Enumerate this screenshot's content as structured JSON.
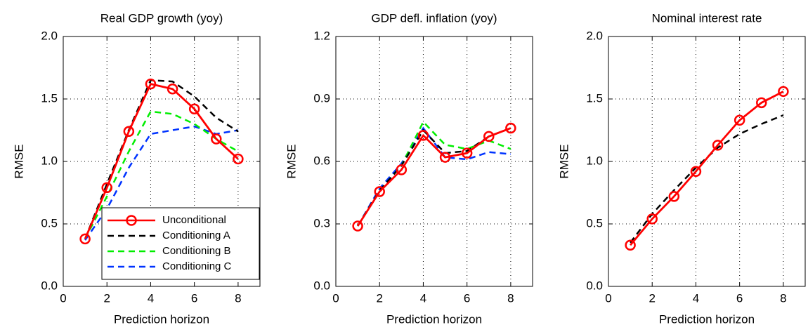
{
  "chart_data": [
    {
      "type": "line",
      "title": "Real GDP growth (yoy)",
      "x_label": "Prediction horizon",
      "y_label": "RMSE",
      "x": [
        1,
        2,
        3,
        4,
        5,
        6,
        7,
        8
      ],
      "xlim": [
        0,
        9
      ],
      "xticks": [
        0,
        2,
        4,
        6,
        8
      ],
      "ylim": [
        0,
        2
      ],
      "yticks": [
        {
          "value": 0,
          "label": "0.0"
        },
        {
          "value": 0.5,
          "label": "0.5"
        },
        {
          "value": 1,
          "label": "1.0"
        },
        {
          "value": 1.5,
          "label": "1.5"
        },
        {
          "value": 2,
          "label": "2.0"
        }
      ],
      "grid": true,
      "legend": "lower right",
      "series": [
        {
          "name": "Unconditional",
          "color": "#ff0000",
          "dash": "solid",
          "marker": "circle",
          "values": [
            0.38,
            0.79,
            1.24,
            1.62,
            1.58,
            1.42,
            1.18,
            1.02
          ]
        },
        {
          "name": "Conditioning A",
          "color": "#000000",
          "dash": "dashed",
          "values": [
            0.38,
            0.82,
            1.25,
            1.65,
            1.64,
            1.52,
            1.35,
            1.24
          ]
        },
        {
          "name": "Conditioning B",
          "color": "#00ee00",
          "dash": "dashed",
          "values": [
            0.38,
            0.72,
            1.08,
            1.4,
            1.38,
            1.3,
            1.18,
            1.08
          ]
        },
        {
          "name": "Conditioning C",
          "color": "#0033ff",
          "dash": "dashed",
          "values": [
            0.37,
            0.62,
            0.95,
            1.22,
            1.25,
            1.28,
            1.22,
            1.25
          ]
        }
      ]
    },
    {
      "type": "line",
      "title": "GDP defl. inflation (yoy)",
      "x_label": "Prediction horizon",
      "y_label": "RMSE",
      "x": [
        1,
        2,
        3,
        4,
        5,
        6,
        7,
        8
      ],
      "xlim": [
        0,
        9
      ],
      "xticks": [
        0,
        2,
        4,
        6,
        8
      ],
      "ylim": [
        0,
        1.2
      ],
      "yticks": [
        {
          "value": 0,
          "label": "0.0"
        },
        {
          "value": 0.3,
          "label": "0.3"
        },
        {
          "value": 0.6,
          "label": "0.6"
        },
        {
          "value": 0.9,
          "label": "0.9"
        },
        {
          "value": 1.2,
          "label": "1.2"
        }
      ],
      "grid": true,
      "series": [
        {
          "name": "Unconditional",
          "color": "#ff0000",
          "dash": "solid",
          "marker": "circle",
          "values": [
            0.29,
            0.455,
            0.56,
            0.725,
            0.62,
            0.64,
            0.72,
            0.76
          ]
        },
        {
          "name": "Conditioning A",
          "color": "#000000",
          "dash": "dashed",
          "values": [
            0.29,
            0.46,
            0.58,
            0.75,
            0.64,
            0.65,
            0.72,
            0.76
          ]
        },
        {
          "name": "Conditioning B",
          "color": "#00ee00",
          "dash": "dashed",
          "values": [
            0.29,
            0.46,
            0.58,
            0.79,
            0.68,
            0.66,
            0.7,
            0.66
          ]
        },
        {
          "name": "Conditioning C",
          "color": "#0033ff",
          "dash": "dashed",
          "values": [
            0.29,
            0.47,
            0.59,
            0.76,
            0.62,
            0.61,
            0.645,
            0.635
          ]
        }
      ]
    },
    {
      "type": "line",
      "title": "Nominal interest rate",
      "x_label": "Prediction horizon",
      "y_label": "RMSE",
      "x": [
        1,
        2,
        3,
        4,
        5,
        6,
        7,
        8
      ],
      "xlim": [
        0,
        9
      ],
      "xticks": [
        0,
        2,
        4,
        6,
        8
      ],
      "ylim": [
        0,
        2
      ],
      "yticks": [
        {
          "value": 0,
          "label": "0.0"
        },
        {
          "value": 0.5,
          "label": "0.5"
        },
        {
          "value": 1,
          "label": "1.0"
        },
        {
          "value": 1.5,
          "label": "1.5"
        },
        {
          "value": 2,
          "label": "2.0"
        }
      ],
      "grid": true,
      "series": [
        {
          "name": "Unconditional",
          "color": "#ff0000",
          "dash": "solid",
          "marker": "circle",
          "values": [
            0.33,
            0.54,
            0.72,
            0.92,
            1.13,
            1.33,
            1.47,
            1.56
          ]
        },
        {
          "name": "Conditioning A",
          "color": "#000000",
          "dash": "dashed",
          "values": [
            0.35,
            0.58,
            0.77,
            0.95,
            1.11,
            1.22,
            1.3,
            1.37
          ]
        }
      ]
    }
  ]
}
